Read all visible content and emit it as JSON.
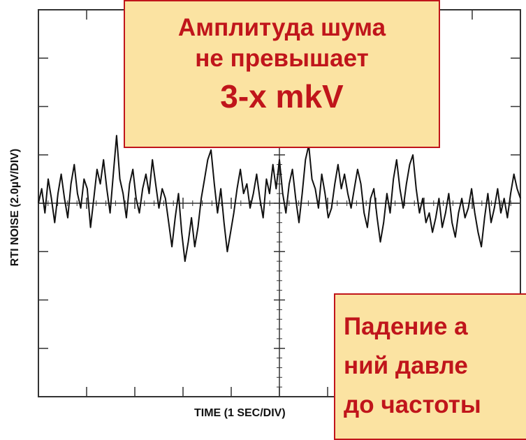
{
  "chart_data": {
    "type": "line",
    "xlabel": "TIME (1 SEC/DIV)",
    "ylabel": "RTI NOISE (2.0µV/DIV)",
    "x_divisions": 10,
    "y_divisions": 8,
    "x_unit_per_div": "1 SEC",
    "y_unit_per_div": "2.0µV",
    "series": [
      {
        "values": [
          0.0,
          0.3,
          -0.2,
          0.5,
          0.1,
          -0.4,
          0.2,
          0.6,
          0.1,
          -0.3,
          0.4,
          0.8,
          0.2,
          -0.1,
          0.5,
          0.3,
          -0.5,
          0.1,
          0.7,
          0.4,
          0.9,
          0.3,
          -0.2,
          0.6,
          1.4,
          0.5,
          0.2,
          -0.3,
          0.4,
          0.7,
          0.1,
          -0.2,
          0.3,
          0.6,
          0.2,
          0.9,
          0.4,
          -0.1,
          0.3,
          0.1,
          -0.4,
          -0.9,
          -0.3,
          0.2,
          -0.6,
          -1.2,
          -0.8,
          -0.3,
          -0.9,
          -0.5,
          0.1,
          0.5,
          0.9,
          1.1,
          0.4,
          -0.2,
          0.3,
          -0.4,
          -1.0,
          -0.6,
          -0.2,
          0.3,
          0.7,
          0.2,
          0.4,
          -0.1,
          0.2,
          0.6,
          0.1,
          -0.3,
          0.5,
          0.2,
          0.8,
          0.3,
          0.9,
          0.2,
          -0.2,
          0.4,
          0.7,
          0.1,
          -0.4,
          0.2,
          0.9,
          1.2,
          0.5,
          0.3,
          -0.1,
          0.6,
          0.2,
          -0.3,
          -0.1,
          0.4,
          0.8,
          0.3,
          0.6,
          0.2,
          -0.1,
          0.3,
          0.7,
          0.4,
          -0.2,
          -0.5,
          0.1,
          0.3,
          -0.3,
          -0.8,
          -0.4,
          0.2,
          -0.2,
          0.5,
          0.9,
          0.3,
          -0.1,
          0.4,
          0.8,
          1.0,
          0.3,
          -0.2,
          0.1,
          -0.4,
          -0.2,
          -0.6,
          -0.3,
          0.1,
          -0.5,
          -0.2,
          0.2,
          -0.4,
          -0.7,
          -0.2,
          0.1,
          -0.3,
          -0.1,
          0.3,
          -0.2,
          -0.6,
          -0.9,
          -0.3,
          0.2,
          -0.4,
          -0.1,
          0.3,
          -0.2,
          0.1,
          -0.3,
          0.2,
          0.6,
          0.3,
          0.1
        ]
      }
    ]
  },
  "callouts": {
    "top": {
      "line1": "Амплитуда шума",
      "line2": "не превышает",
      "line3": "3-x mkV"
    },
    "bottom": {
      "line1": "Падение а",
      "line2": "ний давле",
      "line3": "до частоты"
    }
  },
  "colors": {
    "trace": "#111111",
    "frame": "#333333",
    "callout_fill": "#fbe3a2",
    "callout_border": "#c0151b",
    "callout_text": "#c0151b"
  }
}
